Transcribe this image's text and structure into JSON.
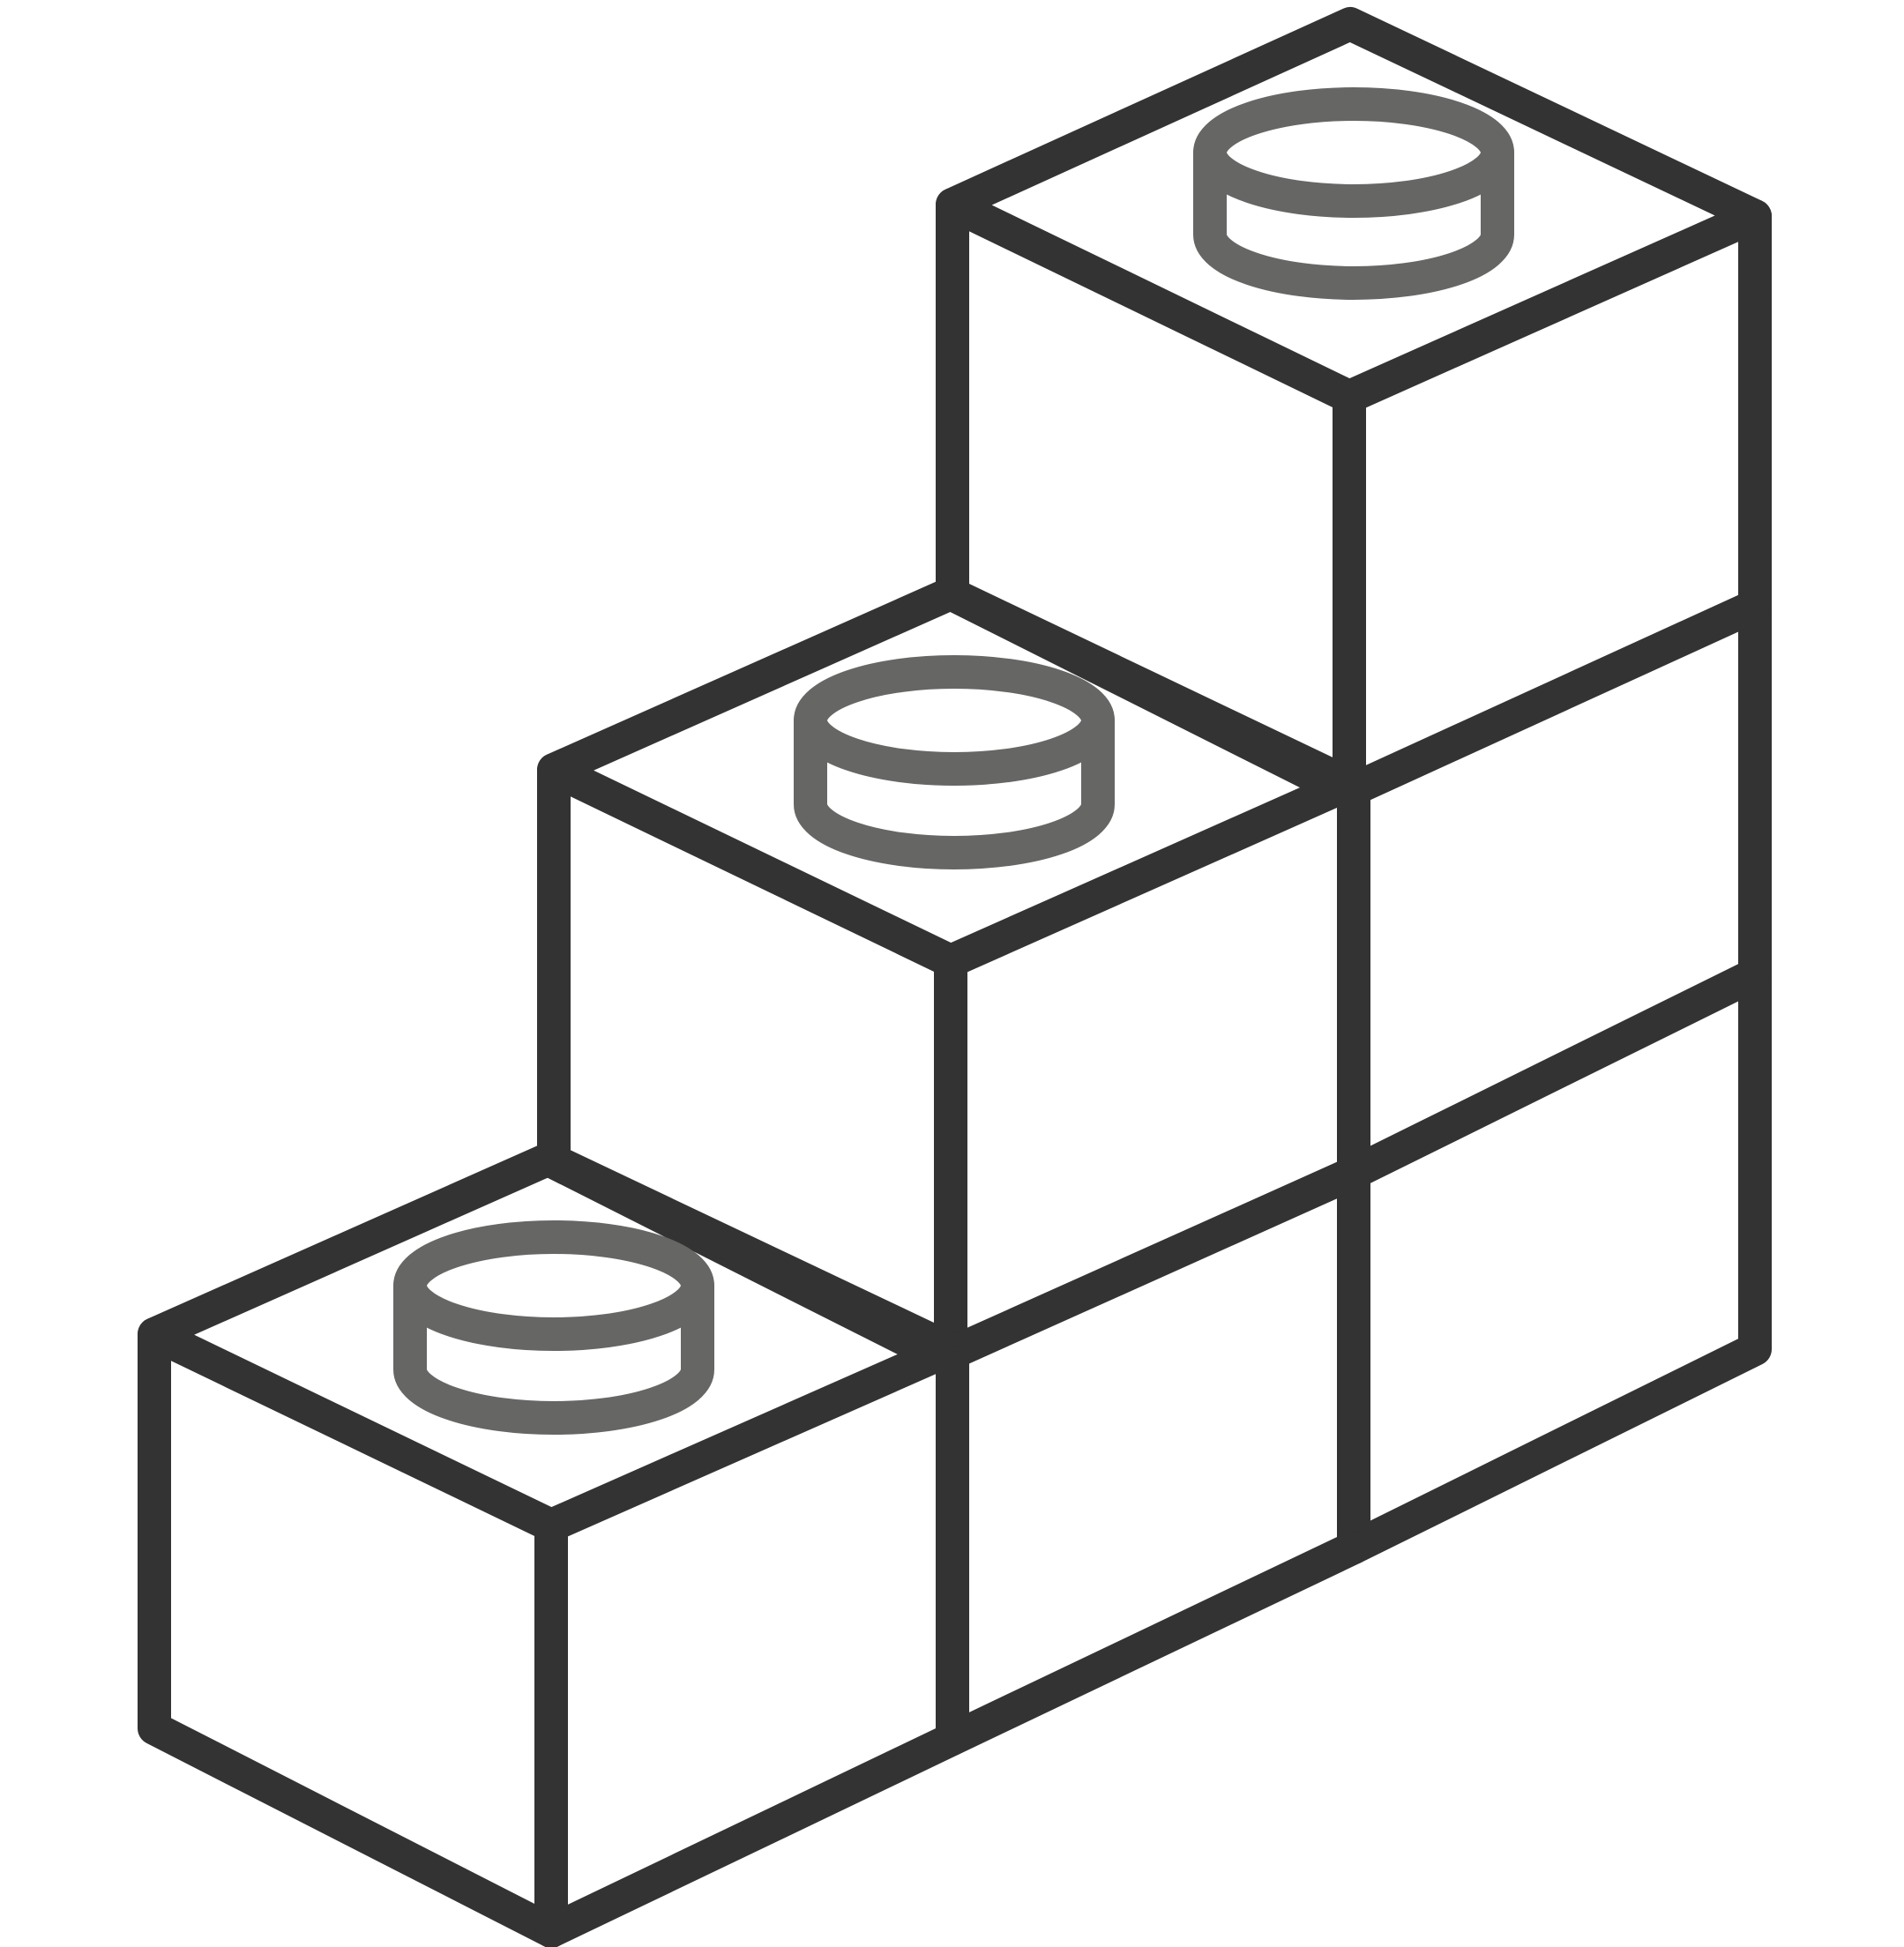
{
  "illustration": {
    "subject": "stacked-blocks-staircase-icon",
    "style": "line-art",
    "colors": {
      "background": "#ffffff",
      "block_outline": "#333333",
      "stud_outline": "#666664"
    },
    "column_heights": [
      1,
      2,
      3
    ],
    "studs_per_top": 1
  }
}
